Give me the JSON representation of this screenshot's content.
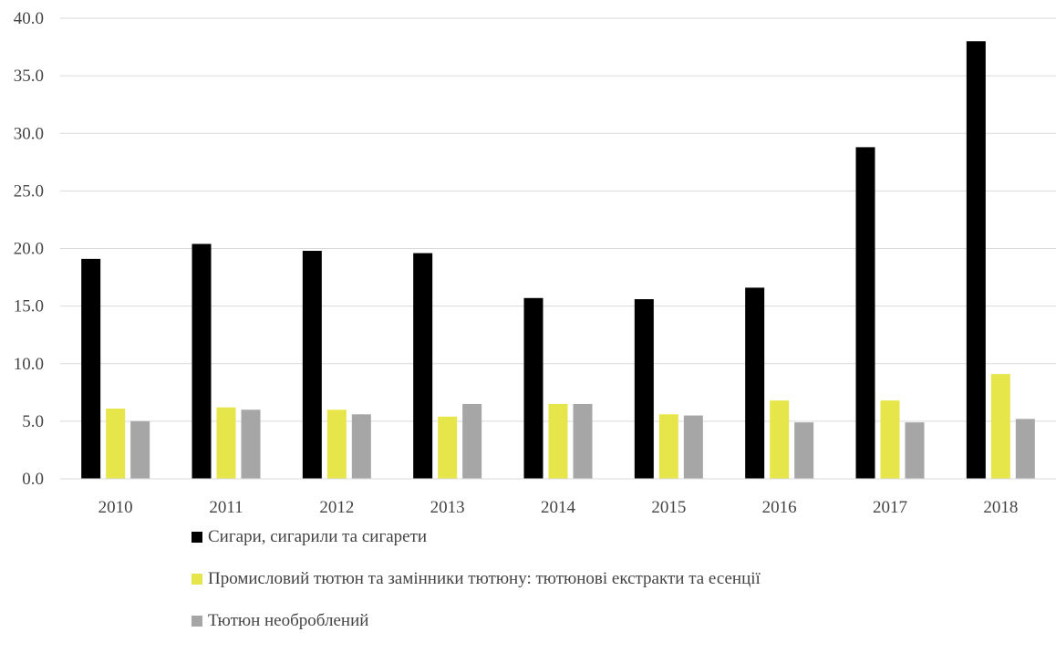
{
  "chart_data": {
    "type": "bar",
    "categories": [
      "2010",
      "2011",
      "2012",
      "2013",
      "2014",
      "2015",
      "2016",
      "2017",
      "2018"
    ],
    "series": [
      {
        "name": "Сигари, сигарили та сигарети",
        "color": "#000000",
        "values": [
          19.1,
          20.4,
          19.8,
          19.6,
          15.7,
          15.6,
          16.6,
          28.8,
          38.0
        ]
      },
      {
        "name": "Промисловий тютюн та замінники тютюну: тютюнові екстракти та есенції",
        "color": "#e6e64a",
        "values": [
          6.1,
          6.2,
          6.0,
          5.4,
          6.5,
          5.6,
          6.8,
          6.8,
          9.1
        ]
      },
      {
        "name": "Тютюн необроблений",
        "color": "#a6a6a6",
        "values": [
          5.0,
          6.0,
          5.6,
          6.5,
          6.5,
          5.5,
          4.9,
          4.9,
          5.2
        ]
      }
    ],
    "yticks": [
      "0.0",
      "5.0",
      "10.0",
      "15.0",
      "20.0",
      "25.0",
      "30.0",
      "35.0",
      "40.0"
    ],
    "ylim": [
      0,
      40
    ],
    "grid": true,
    "legend_position": "bottom"
  }
}
